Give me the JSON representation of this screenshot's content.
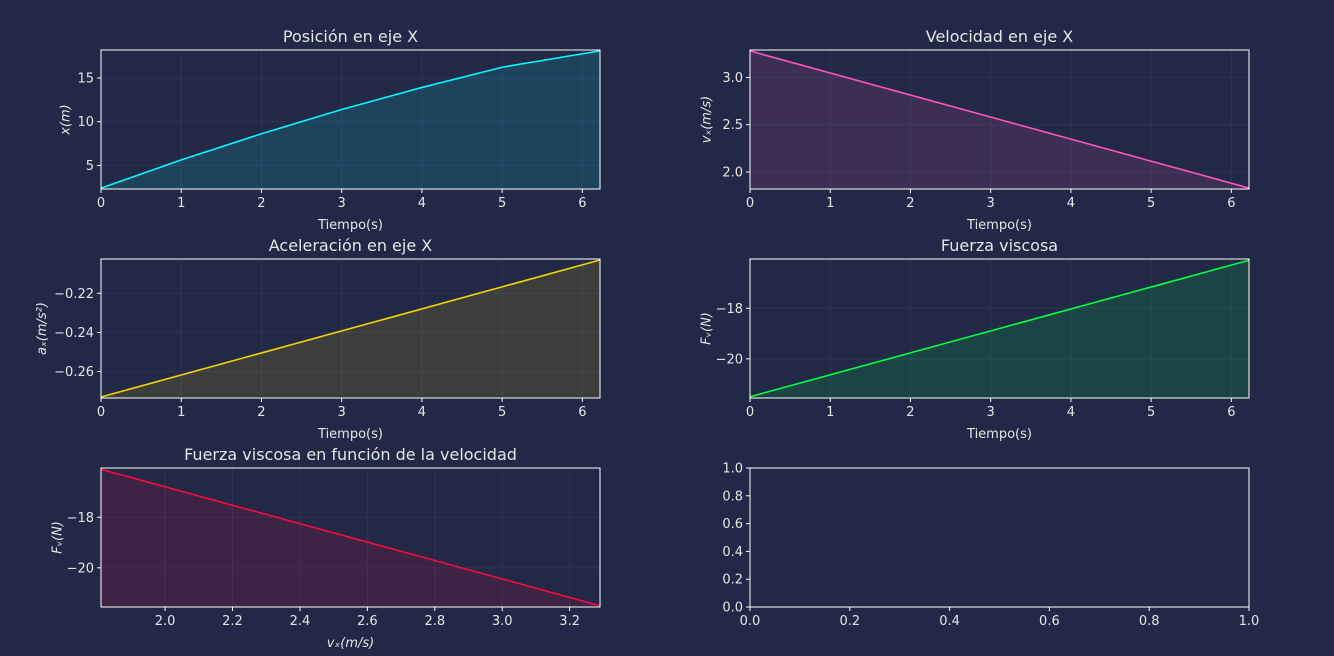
{
  "colors": {
    "background": "#212946",
    "text": "#e6e6e6",
    "grid": "#2a3459",
    "axes": "#ffffff"
  },
  "chart_data": [
    {
      "id": "pos",
      "type": "line",
      "title": "Posición en eje X",
      "xlabel": "Tiempo(s)",
      "ylabel": "x(m)",
      "xlim": [
        0,
        6.22
      ],
      "ylim": [
        2.3,
        18.2
      ],
      "xticks": [
        0,
        1,
        2,
        3,
        4,
        5,
        6
      ],
      "xtick_labels": [
        "0",
        "1",
        "2",
        "3",
        "4",
        "5",
        "6"
      ],
      "yticks": [
        5,
        10,
        15
      ],
      "ytick_labels": [
        "5",
        "10",
        "15"
      ],
      "color": "#08f7fe",
      "fill": true,
      "x": [
        0,
        1,
        2,
        3,
        4,
        5,
        6.22
      ],
      "y": [
        2.4,
        5.63,
        8.62,
        11.39,
        13.92,
        16.23,
        18.1
      ]
    },
    {
      "id": "vel",
      "type": "line",
      "title": "Velocidad en eje X",
      "xlabel": "Tiempo(s)",
      "ylabel": "vₓ(m/s)",
      "xlim": [
        0,
        6.22
      ],
      "ylim": [
        1.82,
        3.29
      ],
      "xticks": [
        0,
        1,
        2,
        3,
        4,
        5,
        6
      ],
      "xtick_labels": [
        "0",
        "1",
        "2",
        "3",
        "4",
        "5",
        "6"
      ],
      "yticks": [
        2.0,
        2.5,
        3.0
      ],
      "ytick_labels": [
        "2.0",
        "2.5",
        "3.0"
      ],
      "color": "#fe53bb",
      "fill": true,
      "x": [
        0,
        6.22
      ],
      "y": [
        3.28,
        1.83
      ]
    },
    {
      "id": "acc",
      "type": "line",
      "title": "Aceleración en eje X",
      "xlabel": "Tiempo(s)",
      "ylabel": "aₓ(m/s²)",
      "xlim": [
        0,
        6.22
      ],
      "ylim": [
        -0.2735,
        -0.2025
      ],
      "xticks": [
        0,
        1,
        2,
        3,
        4,
        5,
        6
      ],
      "xtick_labels": [
        "0",
        "1",
        "2",
        "3",
        "4",
        "5",
        "6"
      ],
      "yticks": [
        -0.22,
        -0.24,
        -0.26
      ],
      "ytick_labels": [
        "−0.22",
        "−0.24",
        "−0.26"
      ],
      "color": "#f5d300",
      "fill": true,
      "x": [
        0,
        6.22
      ],
      "y": [
        -0.273,
        -0.203
      ]
    },
    {
      "id": "fv",
      "type": "line",
      "title": "Fuerza viscosa",
      "xlabel": "Tiempo(s)",
      "ylabel": "Fᵥ(N)",
      "xlim": [
        0,
        6.22
      ],
      "ylim": [
        -21.55,
        -16.05
      ],
      "xticks": [
        0,
        1,
        2,
        3,
        4,
        5,
        6
      ],
      "xtick_labels": [
        "0",
        "1",
        "2",
        "3",
        "4",
        "5",
        "6"
      ],
      "yticks": [
        -18,
        -20
      ],
      "ytick_labels": [
        "−18",
        "−20"
      ],
      "color": "#00ff41",
      "fill": true,
      "x": [
        0,
        6.22
      ],
      "y": [
        -21.5,
        -16.1
      ]
    },
    {
      "id": "fvv",
      "type": "line",
      "title": "Fuerza viscosa en función de la velocidad",
      "xlabel": "vₓ(m/s)",
      "ylabel": "Fᵥ(N)",
      "xlim": [
        1.81,
        3.29
      ],
      "ylim": [
        -21.55,
        -16.05
      ],
      "xticks": [
        2.0,
        2.2,
        2.4,
        2.6,
        2.8,
        3.0,
        3.2
      ],
      "xtick_labels": [
        "2.0",
        "2.2",
        "2.4",
        "2.6",
        "2.8",
        "3.0",
        "3.2"
      ],
      "yticks": [
        -18,
        -20
      ],
      "ytick_labels": [
        "−18",
        "−20"
      ],
      "color": "#ff073a",
      "fill": true,
      "x": [
        1.81,
        3.29
      ],
      "y": [
        -16.1,
        -21.5
      ]
    },
    {
      "id": "empty",
      "type": "line",
      "title": "",
      "xlabel": "",
      "ylabel": "",
      "xlim": [
        0,
        1
      ],
      "ylim": [
        0,
        1
      ],
      "xticks": [
        0,
        0.2,
        0.4,
        0.6,
        0.8,
        1.0
      ],
      "xtick_labels": [
        "0.0",
        "0.2",
        "0.4",
        "0.6",
        "0.8",
        "1.0"
      ],
      "yticks": [
        0,
        0.2,
        0.4,
        0.6,
        0.8,
        1.0
      ],
      "ytick_labels": [
        "0.0",
        "0.2",
        "0.4",
        "0.6",
        "0.8",
        "1.0"
      ],
      "color": "",
      "fill": false,
      "grid": false,
      "x": [],
      "y": []
    }
  ]
}
